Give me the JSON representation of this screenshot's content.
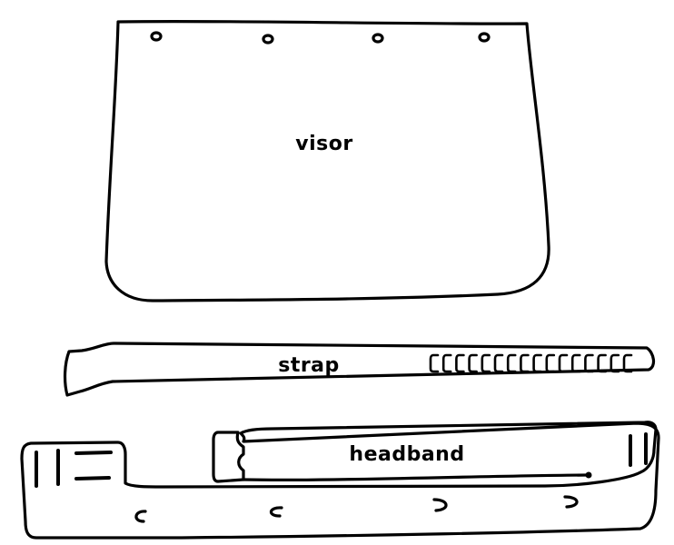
{
  "parts": {
    "visor": {
      "label": "visor"
    },
    "strap": {
      "label": "strap"
    },
    "headband": {
      "label": "headband"
    }
  },
  "colors": {
    "line": "#000000",
    "background": "#ffffff"
  }
}
